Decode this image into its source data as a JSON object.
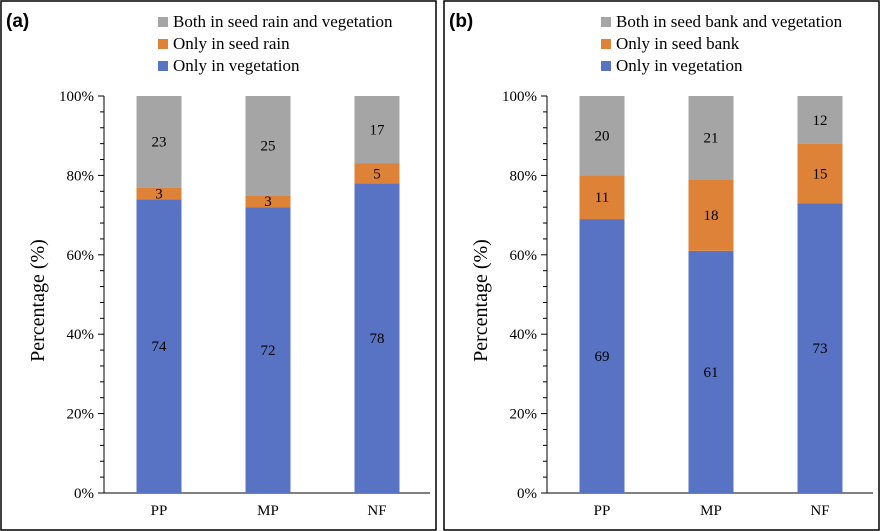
{
  "chart_data": [
    {
      "panel": "(a)",
      "type": "bar",
      "stacked": true,
      "categories": [
        "PP",
        "MP",
        "NF"
      ],
      "series": [
        {
          "name": "Only in vegetation",
          "values": [
            74,
            72,
            78
          ],
          "color": "#5873c4"
        },
        {
          "name": "Only in seed rain",
          "values": [
            3,
            3,
            5
          ],
          "color": "#dd8237"
        },
        {
          "name": "Both in seed rain and vegetation",
          "values": [
            23,
            25,
            17
          ],
          "color": "#a5a5a5"
        }
      ],
      "legend_order": [
        "Both in seed rain and vegetation",
        "Only in seed rain",
        "Only in vegetation"
      ],
      "legend_position": "top",
      "ylabel": "Percentage (%)",
      "xlabel": "",
      "ylim": [
        0,
        100
      ],
      "yticks": [
        "0%",
        "20%",
        "40%",
        "60%",
        "80%",
        "100%"
      ],
      "grid": false
    },
    {
      "panel": "(b)",
      "type": "bar",
      "stacked": true,
      "categories": [
        "PP",
        "MP",
        "NF"
      ],
      "series": [
        {
          "name": "Only in vegetation",
          "values": [
            69,
            61,
            73
          ],
          "color": "#5873c4"
        },
        {
          "name": "Only in seed bank",
          "values": [
            11,
            18,
            15
          ],
          "color": "#dd8237"
        },
        {
          "name": "Both in seed bank and vegetation",
          "values": [
            20,
            21,
            12
          ],
          "color": "#a5a5a5"
        }
      ],
      "legend_order": [
        "Both in seed bank and vegetation",
        "Only in seed bank",
        "Only in vegetation"
      ],
      "legend_position": "top",
      "ylabel": "Percentage (%)",
      "xlabel": "",
      "ylim": [
        0,
        100
      ],
      "yticks": [
        "0%",
        "20%",
        "40%",
        "60%",
        "80%",
        "100%"
      ],
      "grid": false
    }
  ]
}
